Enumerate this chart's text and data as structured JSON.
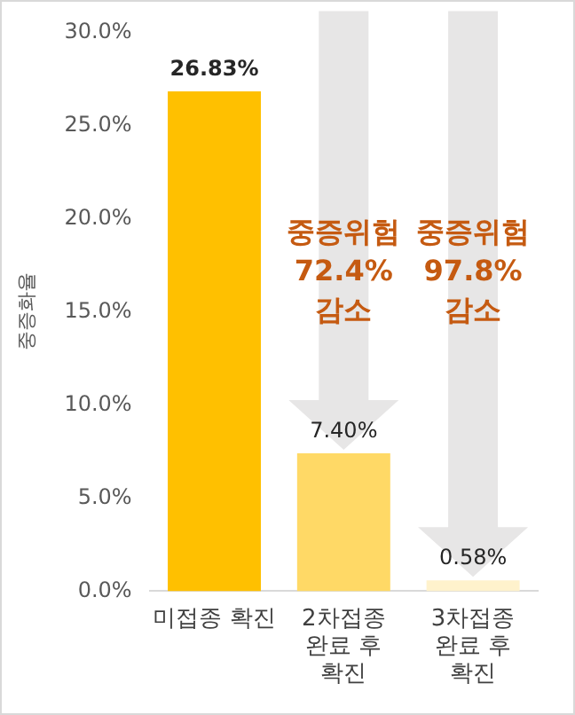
{
  "chart_data": {
    "type": "bar",
    "ylabel": "중증화율",
    "categories": [
      "미접종 확진",
      "2차접종\n완료 후\n확진",
      "3차접종\n완료 후\n확진"
    ],
    "values": [
      26.83,
      7.4,
      0.58
    ],
    "colors": [
      "#ffc000",
      "#ffd966",
      "#fff2cc"
    ],
    "value_labels": [
      "26.83%",
      "7.40%",
      "0.58%"
    ],
    "ylim": [
      0,
      30
    ],
    "yticks": [
      {
        "value": 0,
        "label": "0.0%"
      },
      {
        "value": 5,
        "label": "5.0%"
      },
      {
        "value": 10,
        "label": "10.0%"
      },
      {
        "value": 15,
        "label": "15.0%"
      },
      {
        "value": 20,
        "label": "20.0%"
      },
      {
        "value": 25,
        "label": "25.0%"
      },
      {
        "value": 30,
        "label": "30.0%"
      }
    ],
    "grid": false,
    "legend": false,
    "annotations": [
      "중증위험\n72.4%\n감소",
      "중증위험\n97.8%\n감소"
    ]
  }
}
